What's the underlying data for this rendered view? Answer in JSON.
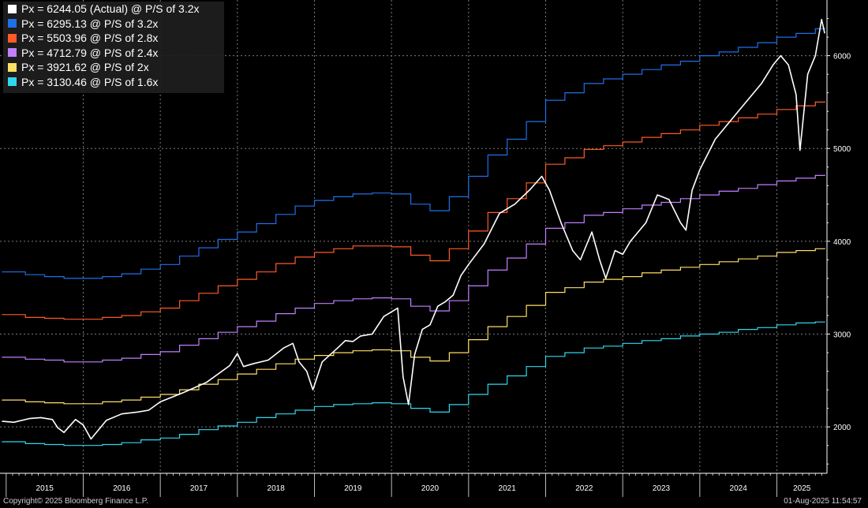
{
  "chart_data": {
    "type": "line",
    "title": "",
    "xlabel": "",
    "ylabel": "",
    "xlim": [
      2014.92,
      2025.65
    ],
    "ylim": [
      1500,
      6600
    ],
    "x_tick_labels": [
      "2015",
      "2016",
      "2017",
      "2018",
      "2019",
      "2020",
      "2021",
      "2022",
      "2023",
      "2024",
      "2025"
    ],
    "y_tick_labels": [
      "2000",
      "3000",
      "4000",
      "5000",
      "6000"
    ],
    "y_ticks": [
      2000,
      3000,
      4000,
      5000,
      6000
    ],
    "grid": true,
    "legend_position": "top-left",
    "series": [
      {
        "name": "Px = 6244.05 (Actual) @ P/S of 3.2x",
        "color": "#ffffff",
        "kind": "actual",
        "x": [
          2014.95,
          2015.1,
          2015.3,
          2015.45,
          2015.6,
          2015.67,
          2015.75,
          2015.9,
          2016.0,
          2016.1,
          2016.3,
          2016.5,
          2016.7,
          2016.85,
          2017.0,
          2017.3,
          2017.6,
          2017.9,
          2018.0,
          2018.08,
          2018.2,
          2018.4,
          2018.6,
          2018.72,
          2018.8,
          2018.9,
          2018.98,
          2019.1,
          2019.3,
          2019.4,
          2019.5,
          2019.6,
          2019.75,
          2019.9,
          2020.0,
          2020.08,
          2020.15,
          2020.22,
          2020.3,
          2020.4,
          2020.5,
          2020.6,
          2020.7,
          2020.8,
          2020.9,
          2021.0,
          2021.2,
          2021.4,
          2021.6,
          2021.8,
          2021.95,
          2022.05,
          2022.2,
          2022.35,
          2022.45,
          2022.6,
          2022.7,
          2022.78,
          2022.9,
          2023.0,
          2023.1,
          2023.2,
          2023.3,
          2023.45,
          2023.6,
          2023.75,
          2023.82,
          2023.9,
          2024.0,
          2024.2,
          2024.4,
          2024.6,
          2024.8,
          2024.95,
          2025.05,
          2025.15,
          2025.25,
          2025.3,
          2025.4,
          2025.5,
          2025.58,
          2025.62
        ],
        "values": [
          2060,
          2050,
          2090,
          2100,
          2080,
          1990,
          1940,
          2080,
          2020,
          1870,
          2070,
          2140,
          2160,
          2180,
          2270,
          2370,
          2480,
          2660,
          2790,
          2650,
          2680,
          2720,
          2850,
          2900,
          2700,
          2600,
          2400,
          2700,
          2850,
          2930,
          2920,
          2980,
          3000,
          3190,
          3240,
          3280,
          2540,
          2240,
          2780,
          3050,
          3100,
          3300,
          3350,
          3420,
          3630,
          3750,
          3970,
          4300,
          4400,
          4560,
          4700,
          4550,
          4200,
          3900,
          3800,
          4100,
          3800,
          3600,
          3900,
          3860,
          4000,
          4100,
          4200,
          4500,
          4450,
          4200,
          4120,
          4550,
          4770,
          5100,
          5300,
          5500,
          5700,
          5900,
          6000,
          5900,
          5580,
          4980,
          5800,
          6000,
          6390,
          6244
        ]
      },
      {
        "name": "Px = 6295.13 @ P/S of 3.2x",
        "color": "#1f6fe8",
        "kind": "step",
        "x": [
          2014.95,
          2015.25,
          2015.5,
          2015.75,
          2016.0,
          2016.25,
          2016.5,
          2016.75,
          2017.0,
          2017.25,
          2017.5,
          2017.75,
          2018.0,
          2018.25,
          2018.5,
          2018.75,
          2019.0,
          2019.25,
          2019.5,
          2019.75,
          2020.0,
          2020.25,
          2020.5,
          2020.75,
          2021.0,
          2021.25,
          2021.5,
          2021.75,
          2022.0,
          2022.25,
          2022.5,
          2022.75,
          2023.0,
          2023.25,
          2023.5,
          2023.75,
          2024.0,
          2024.25,
          2024.5,
          2024.75,
          2025.0,
          2025.25,
          2025.5,
          2025.62
        ],
        "values": [
          3670,
          3640,
          3620,
          3600,
          3600,
          3620,
          3650,
          3700,
          3750,
          3840,
          3930,
          4020,
          4100,
          4190,
          4290,
          4380,
          4440,
          4480,
          4510,
          4520,
          4510,
          4400,
          4330,
          4480,
          4700,
          4930,
          5100,
          5290,
          5520,
          5600,
          5700,
          5750,
          5800,
          5850,
          5900,
          5940,
          6000,
          6040,
          6090,
          6140,
          6200,
          6240,
          6290,
          6295
        ]
      },
      {
        "name": "Px = 5503.96 @ P/S of 2.8x",
        "color": "#ff5a28",
        "kind": "step",
        "x": [
          2014.95,
          2015.25,
          2015.5,
          2015.75,
          2016.0,
          2016.25,
          2016.5,
          2016.75,
          2017.0,
          2017.25,
          2017.5,
          2017.75,
          2018.0,
          2018.25,
          2018.5,
          2018.75,
          2019.0,
          2019.25,
          2019.5,
          2019.75,
          2020.0,
          2020.25,
          2020.5,
          2020.75,
          2021.0,
          2021.25,
          2021.5,
          2021.75,
          2022.0,
          2022.25,
          2022.5,
          2022.75,
          2023.0,
          2023.25,
          2023.5,
          2023.75,
          2024.0,
          2024.25,
          2024.5,
          2024.75,
          2025.0,
          2025.25,
          2025.5,
          2025.62
        ],
        "values": [
          3210,
          3180,
          3170,
          3160,
          3160,
          3180,
          3200,
          3240,
          3280,
          3360,
          3440,
          3520,
          3590,
          3670,
          3760,
          3830,
          3880,
          3920,
          3950,
          3950,
          3940,
          3850,
          3790,
          3920,
          4110,
          4310,
          4460,
          4630,
          4830,
          4900,
          4990,
          5030,
          5070,
          5120,
          5160,
          5200,
          5250,
          5290,
          5330,
          5370,
          5420,
          5460,
          5500,
          5504
        ]
      },
      {
        "name": "Px = 4712.79 @ P/S of 2.4x",
        "color": "#c080ff",
        "kind": "step",
        "x": [
          2014.95,
          2015.25,
          2015.5,
          2015.75,
          2016.0,
          2016.25,
          2016.5,
          2016.75,
          2017.0,
          2017.25,
          2017.5,
          2017.75,
          2018.0,
          2018.25,
          2018.5,
          2018.75,
          2019.0,
          2019.25,
          2019.5,
          2019.75,
          2020.0,
          2020.25,
          2020.5,
          2020.75,
          2021.0,
          2021.25,
          2021.5,
          2021.75,
          2022.0,
          2022.25,
          2022.5,
          2022.75,
          2023.0,
          2023.25,
          2023.5,
          2023.75,
          2024.0,
          2024.25,
          2024.5,
          2024.75,
          2025.0,
          2025.25,
          2025.5,
          2025.62
        ],
        "values": [
          2750,
          2730,
          2720,
          2700,
          2700,
          2720,
          2740,
          2780,
          2810,
          2880,
          2950,
          3020,
          3080,
          3140,
          3220,
          3280,
          3330,
          3360,
          3380,
          3390,
          3380,
          3300,
          3250,
          3360,
          3520,
          3690,
          3820,
          3970,
          4140,
          4200,
          4280,
          4310,
          4350,
          4390,
          4420,
          4460,
          4500,
          4540,
          4570,
          4610,
          4650,
          4680,
          4710,
          4713
        ]
      },
      {
        "name": "Px = 3921.62 @ P/S of 2x",
        "color": "#ffe066",
        "kind": "step",
        "x": [
          2014.95,
          2015.25,
          2015.5,
          2015.75,
          2016.0,
          2016.25,
          2016.5,
          2016.75,
          2017.0,
          2017.25,
          2017.5,
          2017.75,
          2018.0,
          2018.25,
          2018.5,
          2018.75,
          2019.0,
          2019.25,
          2019.5,
          2019.75,
          2020.0,
          2020.25,
          2020.5,
          2020.75,
          2021.0,
          2021.25,
          2021.5,
          2021.75,
          2022.0,
          2022.25,
          2022.5,
          2022.75,
          2023.0,
          2023.25,
          2023.5,
          2023.75,
          2024.0,
          2024.25,
          2024.5,
          2024.75,
          2025.0,
          2025.25,
          2025.5,
          2025.62
        ],
        "values": [
          2290,
          2270,
          2260,
          2250,
          2250,
          2270,
          2290,
          2320,
          2350,
          2400,
          2460,
          2510,
          2570,
          2620,
          2680,
          2730,
          2770,
          2800,
          2820,
          2830,
          2820,
          2750,
          2710,
          2800,
          2940,
          3080,
          3190,
          3310,
          3450,
          3500,
          3560,
          3590,
          3620,
          3660,
          3690,
          3720,
          3750,
          3780,
          3810,
          3840,
          3880,
          3900,
          3920,
          3922
        ]
      },
      {
        "name": "Px = 3130.46 @ P/S of 1.6x",
        "color": "#2fd8ee",
        "kind": "step",
        "x": [
          2014.95,
          2015.25,
          2015.5,
          2015.75,
          2016.0,
          2016.25,
          2016.5,
          2016.75,
          2017.0,
          2017.25,
          2017.5,
          2017.75,
          2018.0,
          2018.25,
          2018.5,
          2018.75,
          2019.0,
          2019.25,
          2019.5,
          2019.75,
          2020.0,
          2020.25,
          2020.5,
          2020.75,
          2021.0,
          2021.25,
          2021.5,
          2021.75,
          2022.0,
          2022.25,
          2022.5,
          2022.75,
          2023.0,
          2023.25,
          2023.5,
          2023.75,
          2024.0,
          2024.25,
          2024.5,
          2024.75,
          2025.0,
          2025.25,
          2025.5,
          2025.62
        ],
        "values": [
          1840,
          1820,
          1810,
          1800,
          1800,
          1810,
          1830,
          1860,
          1880,
          1920,
          1970,
          2010,
          2050,
          2100,
          2140,
          2180,
          2220,
          2240,
          2250,
          2260,
          2250,
          2200,
          2160,
          2240,
          2350,
          2460,
          2550,
          2650,
          2760,
          2800,
          2850,
          2870,
          2900,
          2930,
          2950,
          2980,
          3000,
          3020,
          3050,
          3070,
          3100,
          3120,
          3130,
          3130
        ]
      }
    ]
  },
  "footer": {
    "copyright": "Copyright© 2025 Bloomberg Finance L.P.",
    "timestamp": "01-Aug-2025 11:54:57"
  }
}
